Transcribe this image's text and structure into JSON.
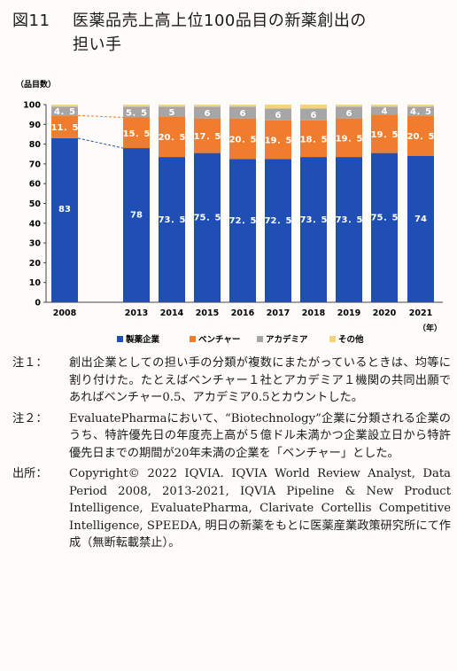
{
  "figure": {
    "number": "図11",
    "title_line1": "医薬品売上高上位100品目の新薬創出の",
    "title_line2": "担い手"
  },
  "chart_data": {
    "type": "bar",
    "stacked": true,
    "unit_label": "（品目数）",
    "x_unit_label": "（年）",
    "categories": [
      "2008",
      "2013",
      "2014",
      "2015",
      "2016",
      "2017",
      "2018",
      "2019",
      "2020",
      "2021"
    ],
    "series": [
      {
        "name": "製薬企業",
        "color": "#1f4fb4",
        "values": [
          83,
          78,
          73.5,
          75.5,
          72.5,
          72.5,
          73.5,
          73.5,
          75.5,
          74
        ],
        "labels": [
          "83",
          "78",
          "73．5",
          "75．5",
          "72．5",
          "72．5",
          "73．5",
          "73．5",
          "75．5",
          "74"
        ]
      },
      {
        "name": "ベンチャー",
        "color": "#ef7d2d",
        "values": [
          11.5,
          15.5,
          20.5,
          17.5,
          20.5,
          19.5,
          18.5,
          19.5,
          19.5,
          20.5
        ],
        "labels": [
          "11．5",
          "15．5",
          "20．5",
          "17．5",
          "20．5",
          "19．5",
          "18．5",
          "19．5",
          "19．5",
          "20．5"
        ]
      },
      {
        "name": "アカデミア",
        "color": "#a6a6a6",
        "values": [
          4.5,
          5.5,
          5,
          6,
          6,
          6,
          6,
          6,
          4,
          4.5
        ],
        "labels": [
          "4．5",
          "5．5",
          "5",
          "6",
          "6",
          "6",
          "6",
          "6",
          "4",
          "4．5"
        ]
      },
      {
        "name": "その他",
        "color": "#f6d37a",
        "values": [
          1,
          1,
          1,
          1,
          1,
          2,
          2,
          1,
          1,
          1
        ],
        "labels": [
          "",
          "",
          "",
          "",
          "",
          "",
          "",
          "",
          "",
          ""
        ]
      }
    ],
    "ylim": [
      0,
      100
    ],
    "yticks": [
      0,
      10,
      20,
      30,
      40,
      50,
      60,
      70,
      80,
      90,
      100
    ],
    "grid": false,
    "legend": "bottom"
  },
  "notes": [
    {
      "label": "注１：",
      "text": "創出企業としての担い手の分類が複数にまたがっているときは、均等に割り付けた。たとえばベンチャー１社とアカデミア１機関の共同出願であればベンチャー0.5、アカデミア0.5とカウントした。"
    },
    {
      "label": "注２：",
      "text": "EvaluatePharmaにおいて、“Biotechnology”企業に分類される企業のうち、特許優先日の年度売上高が５億ドル未満かつ企業設立日から特許優先日までの期間が20年未満の企業を「ベンチャー」とした。"
    },
    {
      "label": "出所：",
      "text": "Copyright© 2022 IQVIA. IQVIA World Review Analyst, Data Period 2008, 2013-2021, IQVIA Pipeline & New Product Intelligence, EvaluatePharma, Clarivate Cortellis Competitive Intelligence, SPEEDA, 明日の新薬をもとに医薬産業政策研究所にて作成（無断転載禁止）。"
    }
  ]
}
